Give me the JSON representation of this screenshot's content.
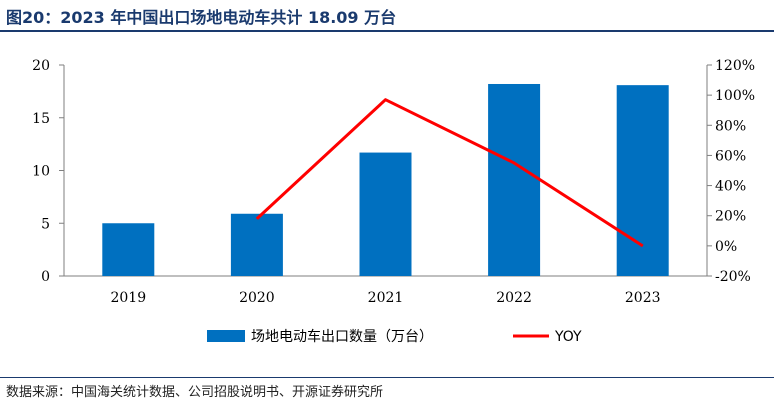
{
  "title": "图20：2023 年中国出口场地电动车共计 18.09 万台",
  "source": "数据来源：中国海关统计数据、公司招股说明书、开源证券研究所",
  "chart_data": {
    "type": "bar",
    "categories": [
      "2019",
      "2020",
      "2021",
      "2022",
      "2023"
    ],
    "series": [
      {
        "name": "场地电动车出口数量（万台）",
        "type": "bar",
        "axis": "left",
        "color": "#0070c0",
        "values": [
          5.0,
          5.9,
          11.7,
          18.2,
          18.09
        ]
      },
      {
        "name": "YOY",
        "type": "line",
        "axis": "right",
        "color": "#ff0000",
        "values": [
          null,
          18,
          97,
          55,
          0
        ]
      }
    ],
    "y_left": {
      "ylim": [
        0,
        20
      ],
      "ticks": [
        "0",
        "5",
        "10",
        "15",
        "20"
      ]
    },
    "y_right": {
      "ylim": [
        -20,
        120
      ],
      "ticks": [
        "-20%",
        "0%",
        "20%",
        "40%",
        "60%",
        "80%",
        "100%",
        "120%"
      ]
    },
    "grid": false,
    "legend_position": "bottom"
  }
}
